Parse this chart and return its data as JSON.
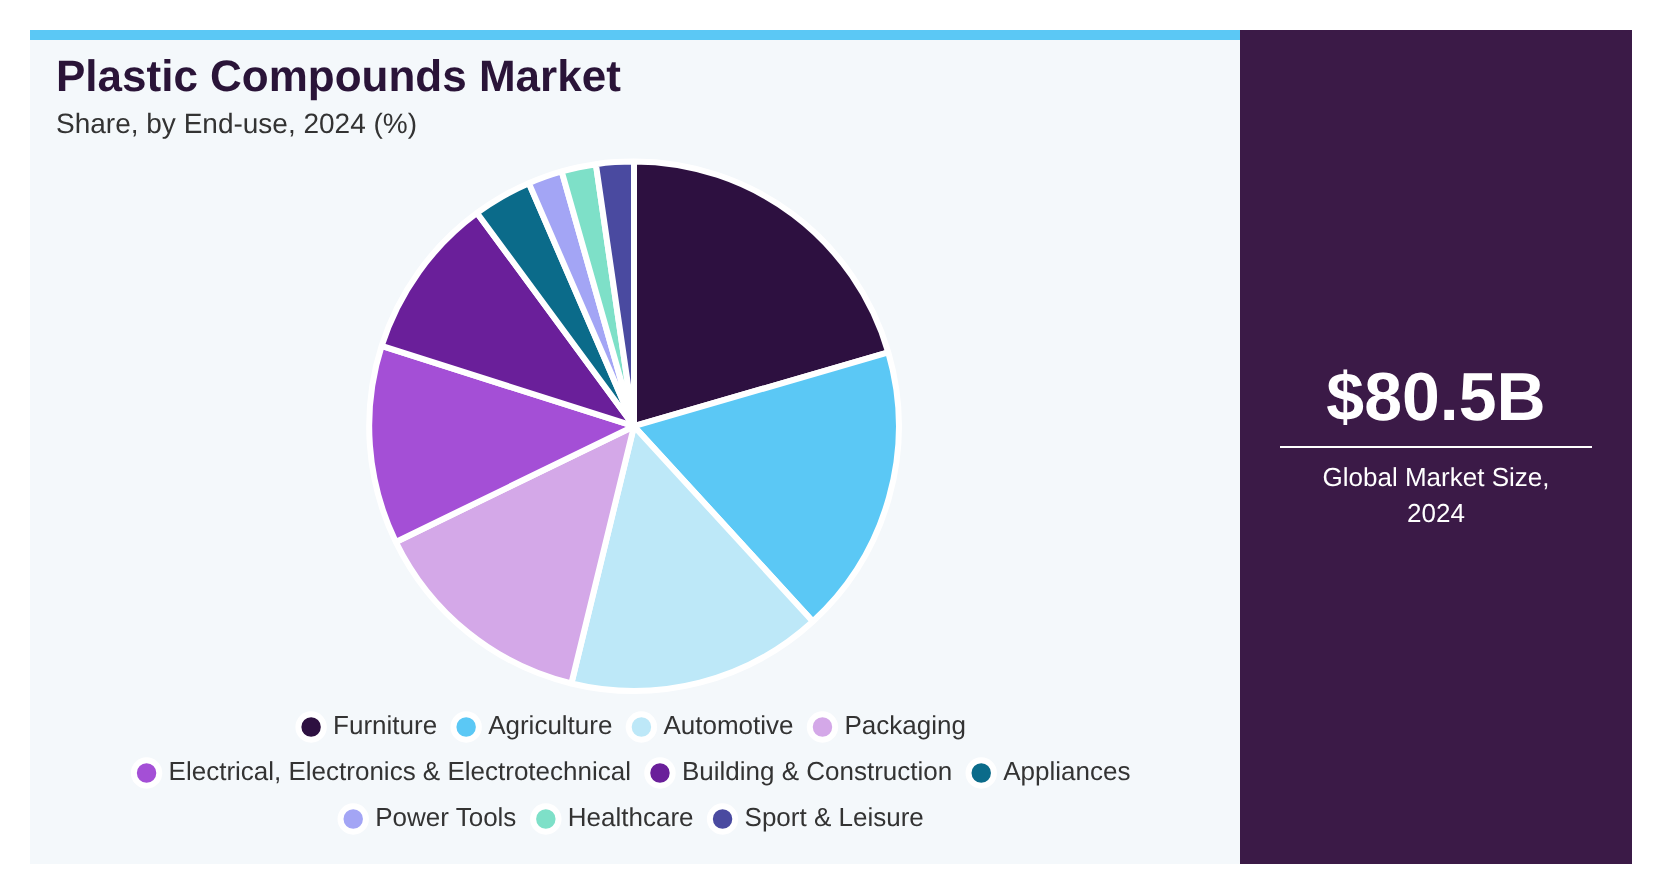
{
  "chart_data": {
    "type": "pie",
    "title": "Plastic Compounds Market",
    "subtitle": "Share, by End-use, 2024 (%)",
    "categories": [
      "Furniture",
      "Agriculture",
      "Automotive",
      "Packaging",
      "Electrical, Electronics & Electrotechnical",
      "Building & Construction",
      "Appliances",
      "Power Tools",
      "Healthcare",
      "Sport & Leisure"
    ],
    "values": [
      20.5,
      17.7,
      15.6,
      14,
      12.1,
      10,
      3.6,
      2.1,
      2.1,
      2.3
    ],
    "colors": [
      "#2d1040",
      "#5bc8f5",
      "#bde8f8",
      "#d4a8e8",
      "#a44fd6",
      "#6a1f9a",
      "#0b6b8a",
      "#a3a5f5",
      "#7ee0c8",
      "#4a4aa0"
    ],
    "legend": "bottom",
    "annotations": [
      "$80.5B",
      "Global Market Size, 2024"
    ]
  }
}
